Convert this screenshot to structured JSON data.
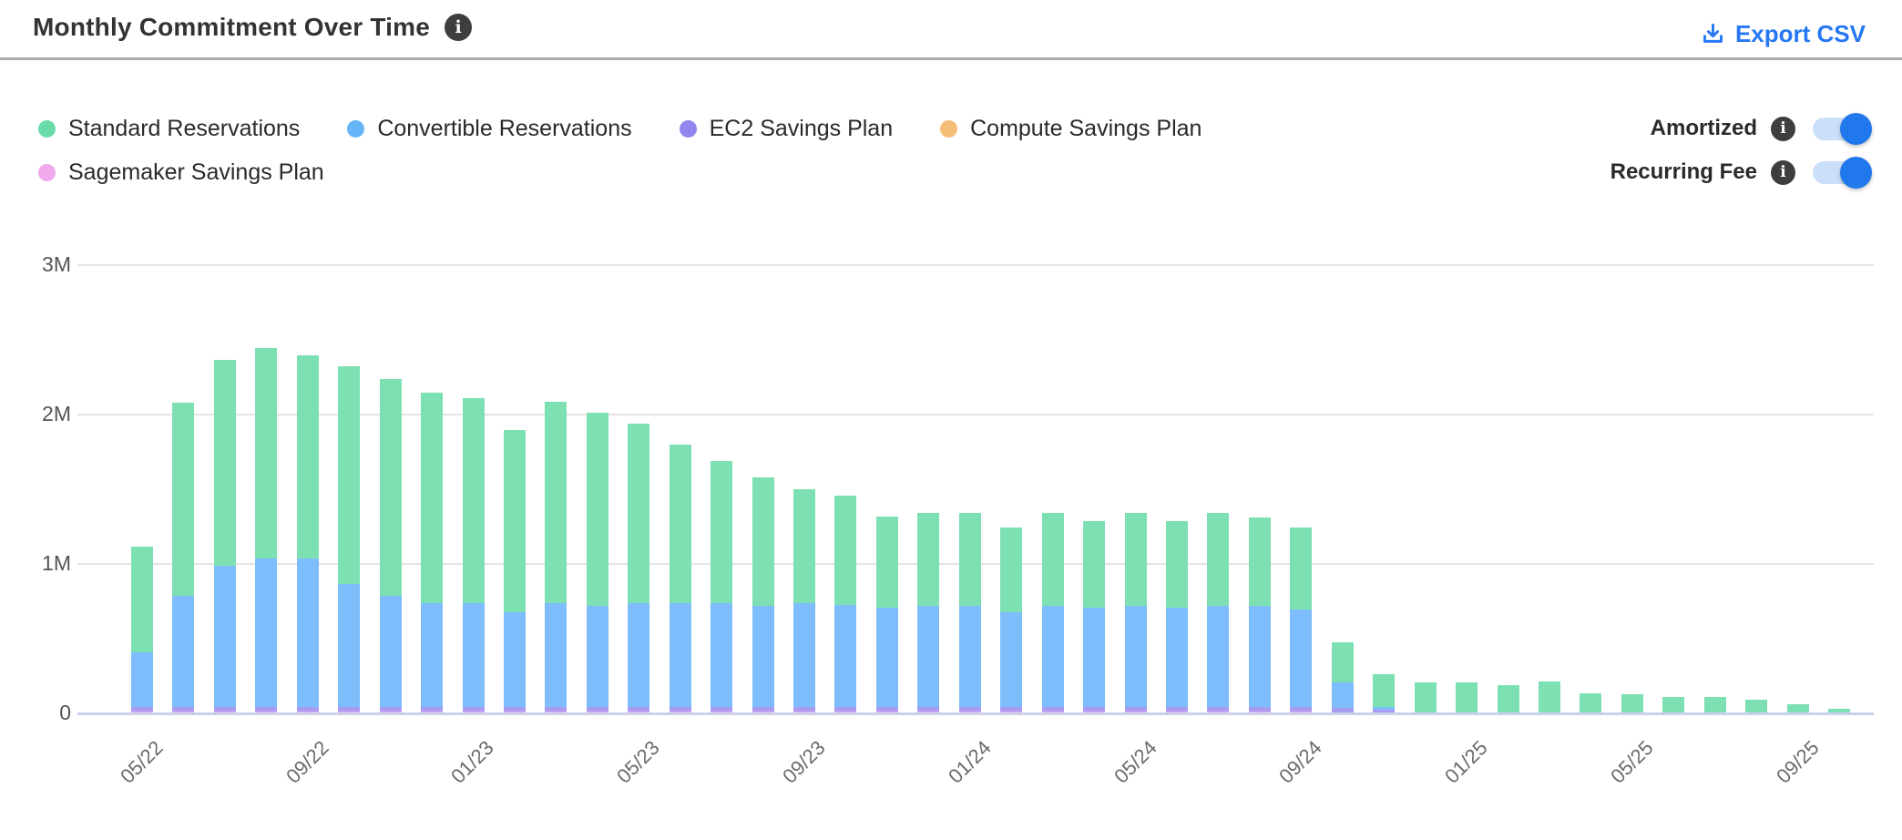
{
  "header": {
    "title": "Monthly Commitment Over Time",
    "export_label": "Export CSV"
  },
  "icons": {
    "info_glyph": "i",
    "download_icon": "download-arrow-into-tray"
  },
  "legend": [
    {
      "label": "Standard Reservations",
      "color": "#69dba8"
    },
    {
      "label": "Convertible Reservations",
      "color": "#66b5f8"
    },
    {
      "label": "EC2 Savings Plan",
      "color": "#9185ee"
    },
    {
      "label": "Compute Savings Plan",
      "color": "#f5be78"
    },
    {
      "label": "Sagemaker Savings Plan",
      "color": "#efa9ec"
    }
  ],
  "toggles": [
    {
      "label": "Amortized",
      "state": "on"
    },
    {
      "label": "Recurring Fee",
      "state": "on"
    }
  ],
  "colors": {
    "accent_blue": "#2577f2",
    "toggle_track": "#cbdff8",
    "toggle_knob": "#2178ec",
    "gridline": "#e4e4e4",
    "baseline": "#c9d2ea",
    "title_text": "#333333",
    "axis_text": "#555555"
  },
  "chart_data": {
    "type": "bar",
    "stacked": true,
    "unit": "millions",
    "title": "Monthly Commitment Over Time",
    "xlabel": "",
    "ylabel": "",
    "ylim": [
      0,
      3000000
    ],
    "grid": true,
    "legend_position": "top-left",
    "y_ticks": [
      {
        "label": "0",
        "value": 0
      },
      {
        "label": "1M",
        "value": 1
      },
      {
        "label": "2M",
        "value": 2
      },
      {
        "label": "3M",
        "value": 3
      }
    ],
    "x": [
      "05/22",
      "06/22",
      "07/22",
      "08/22",
      "09/22",
      "10/22",
      "11/22",
      "12/22",
      "01/23",
      "02/23",
      "03/23",
      "04/23",
      "05/23",
      "06/23",
      "07/23",
      "08/23",
      "09/23",
      "10/23",
      "11/23",
      "12/23",
      "01/24",
      "02/24",
      "03/24",
      "04/24",
      "05/24",
      "06/24",
      "07/24",
      "08/24",
      "09/24",
      "10/24",
      "11/24",
      "12/24",
      "01/25",
      "02/25",
      "03/25",
      "04/25",
      "05/25",
      "06/25",
      "07/25",
      "08/25",
      "09/25",
      "10/25"
    ],
    "x_tick_every": 4,
    "x_tick_labels": [
      "05/22",
      "09/22",
      "01/23",
      "05/23",
      "09/23",
      "01/24",
      "05/24",
      "09/24",
      "01/25",
      "05/25",
      "09/25"
    ],
    "series": [
      {
        "name": "Standard Reservations",
        "color": "#7de0b2",
        "values": [
          0.71,
          1.29,
          1.38,
          1.41,
          1.36,
          1.46,
          1.45,
          1.41,
          1.37,
          1.22,
          1.35,
          1.29,
          1.2,
          1.06,
          0.95,
          0.86,
          0.76,
          0.73,
          0.61,
          0.62,
          0.62,
          0.57,
          0.62,
          0.58,
          0.62,
          0.58,
          0.62,
          0.59,
          0.55,
          0.27,
          0.22,
          0.2,
          0.2,
          0.18,
          0.205,
          0.13,
          0.12,
          0.105,
          0.105,
          0.085,
          0.055,
          0.025
        ]
      },
      {
        "name": "Convertible Reservations",
        "color": "#7ebdfb",
        "values": [
          0.365,
          0.745,
          0.945,
          0.995,
          0.995,
          0.825,
          0.745,
          0.695,
          0.695,
          0.635,
          0.695,
          0.675,
          0.695,
          0.695,
          0.695,
          0.675,
          0.695,
          0.685,
          0.665,
          0.675,
          0.675,
          0.635,
          0.675,
          0.665,
          0.675,
          0.665,
          0.675,
          0.675,
          0.655,
          0.17,
          0.02,
          0,
          0,
          0,
          0,
          0,
          0,
          0,
          0,
          0,
          0,
          0
        ]
      },
      {
        "name": "EC2 Savings Plan",
        "color": "#a89bf2",
        "values": [
          0.03,
          0.03,
          0.03,
          0.03,
          0.03,
          0.03,
          0.03,
          0.03,
          0.03,
          0.03,
          0.03,
          0.03,
          0.03,
          0.03,
          0.03,
          0.03,
          0.03,
          0.03,
          0.03,
          0.03,
          0.03,
          0.03,
          0.03,
          0.03,
          0.03,
          0.03,
          0.03,
          0.03,
          0.03,
          0.03,
          0.02,
          0,
          0,
          0,
          0,
          0,
          0,
          0,
          0,
          0,
          0,
          0
        ]
      },
      {
        "name": "Compute Savings Plan",
        "color": "#f5be78",
        "values": [
          0,
          0,
          0,
          0,
          0,
          0,
          0,
          0,
          0,
          0,
          0,
          0,
          0,
          0,
          0,
          0,
          0,
          0,
          0,
          0,
          0,
          0,
          0,
          0,
          0,
          0,
          0,
          0,
          0,
          0,
          0,
          0,
          0,
          0,
          0,
          0,
          0,
          0,
          0,
          0,
          0,
          0
        ]
      },
      {
        "name": "Sagemaker Savings Plan",
        "color": "#efa9ec",
        "values": [
          0.005,
          0.005,
          0.005,
          0.005,
          0.005,
          0.005,
          0.005,
          0.005,
          0.005,
          0.005,
          0.005,
          0.005,
          0.005,
          0.005,
          0.005,
          0.005,
          0.005,
          0.005,
          0.005,
          0.005,
          0.005,
          0.005,
          0.005,
          0.005,
          0.005,
          0.005,
          0.005,
          0.005,
          0.005,
          0,
          0,
          0,
          0,
          0,
          0,
          0,
          0,
          0,
          0,
          0,
          0,
          0
        ]
      }
    ]
  }
}
